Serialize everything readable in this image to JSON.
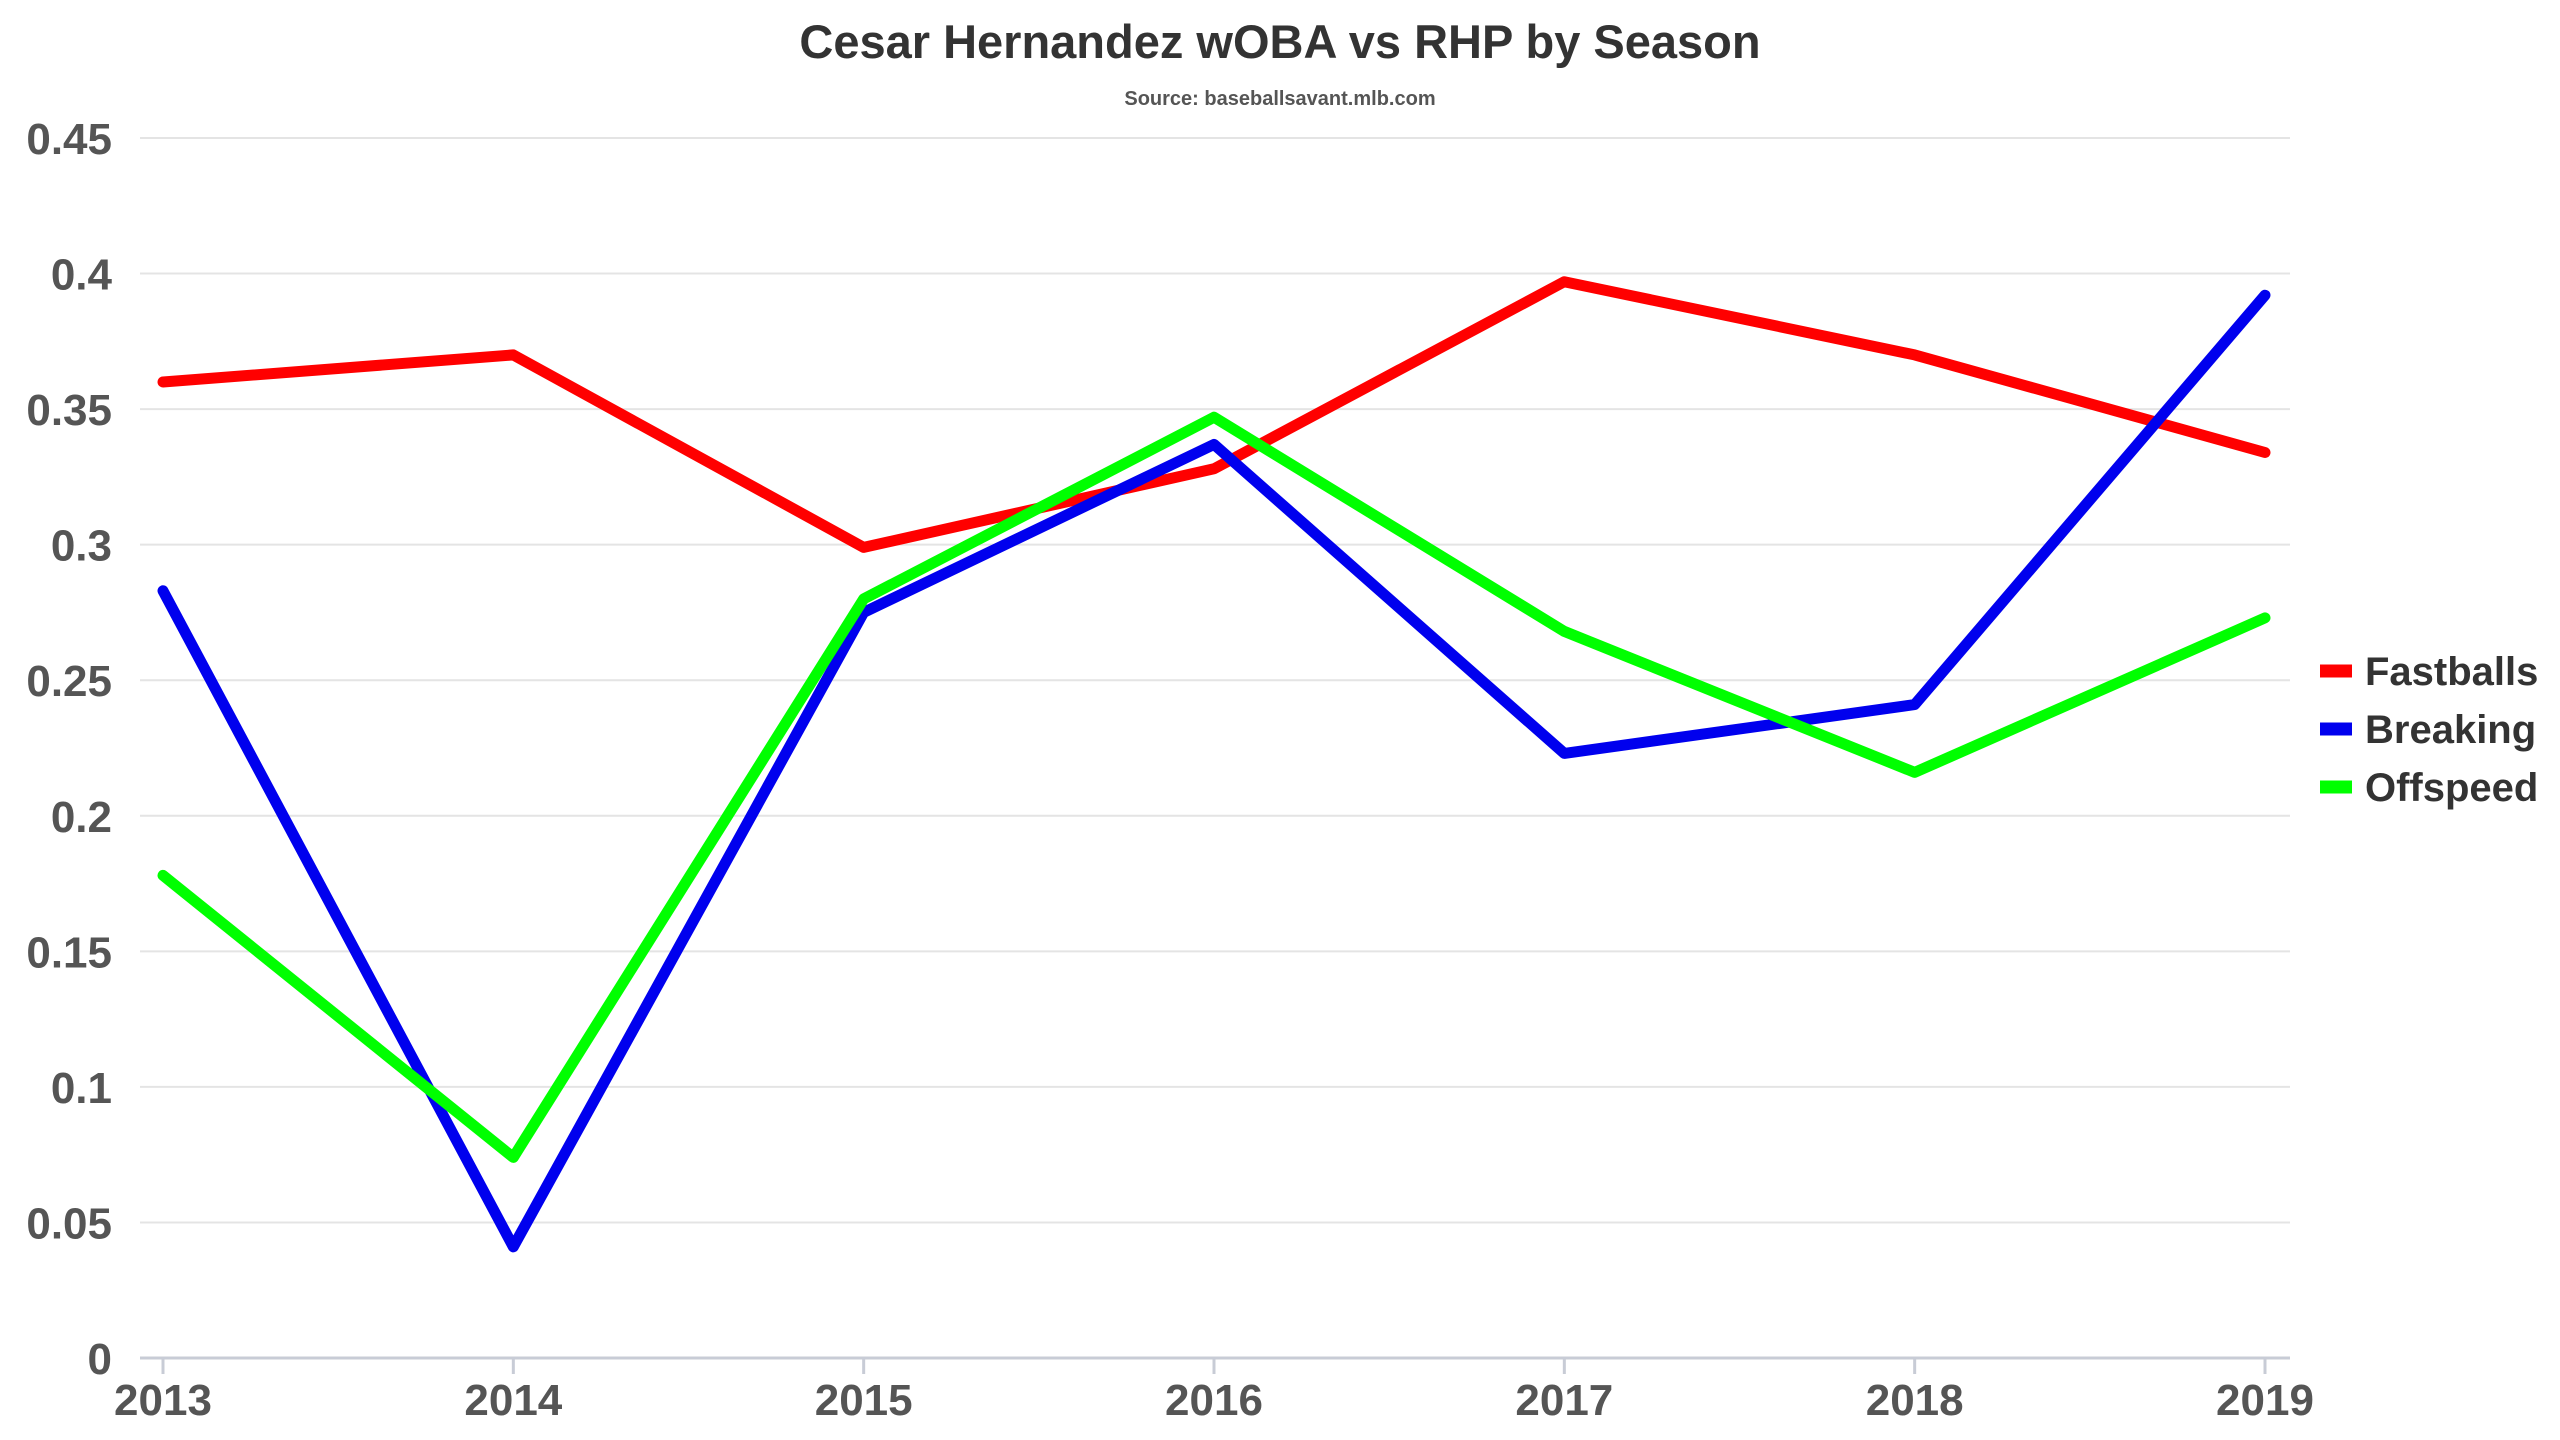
{
  "chart_data": {
    "type": "line",
    "title": "Cesar Hernandez wOBA vs RHP by Season",
    "subtitle": "Source: baseballsavant.mlb.com",
    "xlabel": "",
    "ylabel": "",
    "categories": [
      "2013",
      "2014",
      "2015",
      "2016",
      "2017",
      "2018",
      "2019"
    ],
    "ylim": [
      0,
      0.45
    ],
    "yticks": [
      "0",
      "0.05",
      "0.1",
      "0.15",
      "0.2",
      "0.25",
      "0.3",
      "0.35",
      "0.4",
      "0.45"
    ],
    "grid": true,
    "legend_position": "right",
    "series": [
      {
        "name": "Fastballs",
        "color": "#ff0000",
        "values": [
          0.36,
          0.37,
          0.299,
          0.328,
          0.397,
          0.37,
          0.334
        ]
      },
      {
        "name": "Breaking",
        "color": "#0000ee",
        "values": [
          0.283,
          0.041,
          0.275,
          0.337,
          0.223,
          0.241,
          0.392
        ]
      },
      {
        "name": "Offspeed",
        "color": "#00ff00",
        "values": [
          0.178,
          0.074,
          0.28,
          0.347,
          0.268,
          0.216,
          0.273
        ]
      }
    ]
  }
}
